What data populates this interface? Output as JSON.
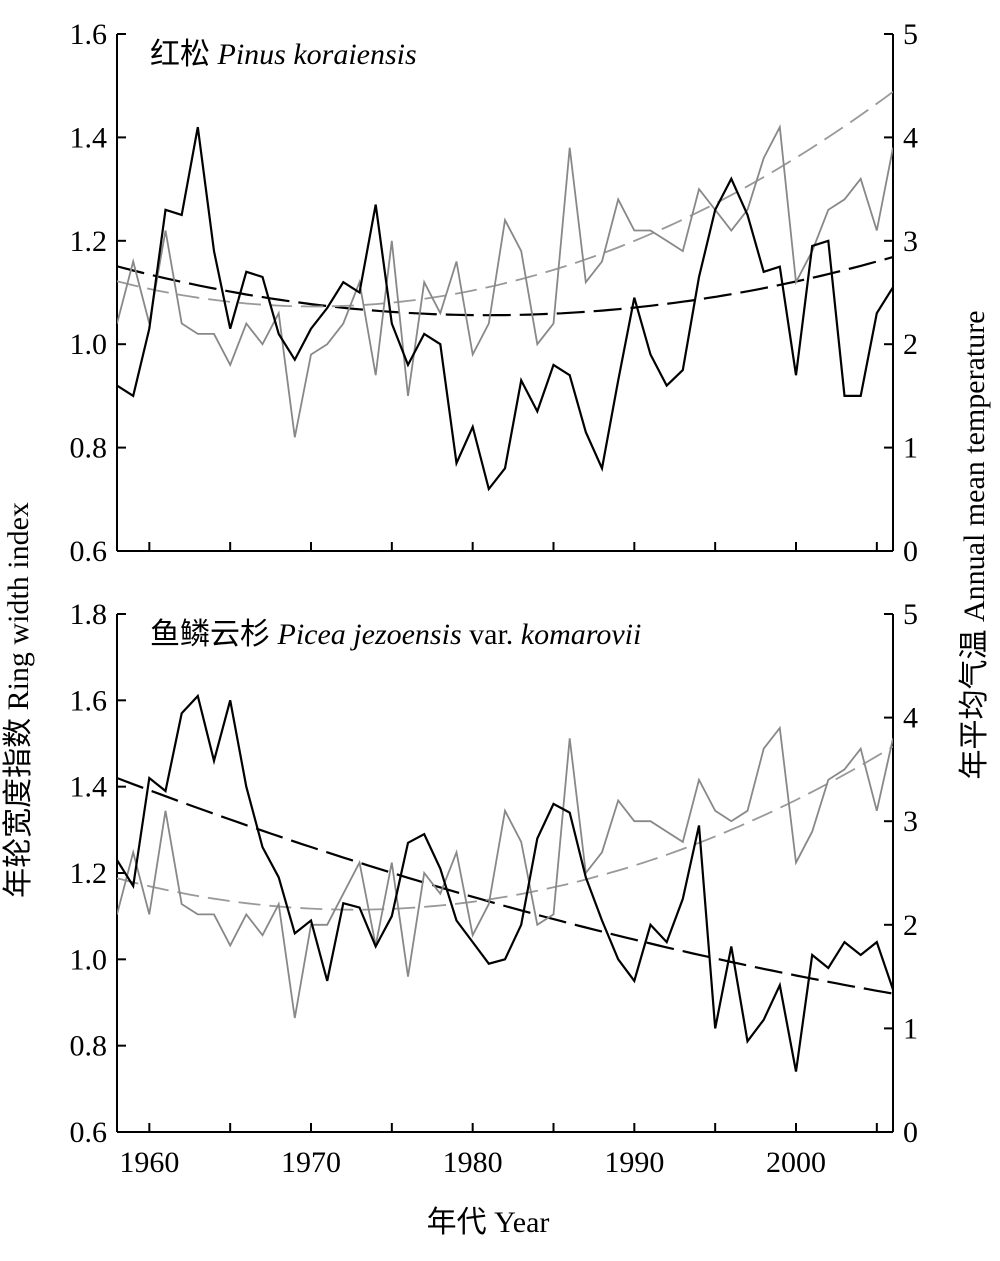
{
  "colors": {
    "ring_width": "#000000",
    "temperature": "#888888",
    "ring_width_trend": "#000000",
    "temperature_trend": "#999999"
  },
  "axes": {
    "left_label": "年轮宽度指数 Ring width index",
    "right_label": "年平均气温 Annual mean temperature",
    "x_label": "年代 Year",
    "x_ticks": [
      1960,
      1970,
      1980,
      1990,
      2000
    ]
  },
  "chart_data": [
    {
      "type": "line",
      "title_cn": "红松",
      "title_latin": "Pinus koraiensis",
      "title_suffix": "",
      "title_latin2": "",
      "xlim": [
        1958,
        2006
      ],
      "y_left_lim": [
        0.6,
        1.6
      ],
      "y_left_ticks": [
        "0.6",
        "0.8",
        "1.0",
        "1.2",
        "1.4",
        "1.6"
      ],
      "y_right_lim": [
        0,
        5
      ],
      "y_right_ticks": [
        "0",
        "1",
        "2",
        "3",
        "4",
        "5"
      ],
      "years_start": 1958,
      "series": [
        {
          "axis": "left",
          "values": [
            0.92,
            0.9,
            1.03,
            1.26,
            1.25,
            1.42,
            1.18,
            1.03,
            1.14,
            1.13,
            1.02,
            0.97,
            1.03,
            1.07,
            1.12,
            1.1,
            1.27,
            1.04,
            0.96,
            1.02,
            1.0,
            0.77,
            0.84,
            0.72,
            0.76,
            0.93,
            0.87,
            0.96,
            0.94,
            0.83,
            0.76,
            0.93,
            1.09,
            0.98,
            0.92,
            0.95,
            1.13,
            1.26,
            1.32,
            1.25,
            1.14,
            1.15,
            0.94,
            1.19,
            1.2,
            0.9,
            0.9,
            1.06,
            1.11
          ]
        },
        {
          "axis": "right",
          "values": [
            2.2,
            2.8,
            2.2,
            3.1,
            2.2,
            2.1,
            2.1,
            1.8,
            2.2,
            2.0,
            2.3,
            1.1,
            1.9,
            2.0,
            2.2,
            2.6,
            1.7,
            3.0,
            1.5,
            2.6,
            2.3,
            2.8,
            1.9,
            2.2,
            3.2,
            2.9,
            2.0,
            2.2,
            3.9,
            2.6,
            2.8,
            3.4,
            3.1,
            3.1,
            3.0,
            2.9,
            3.5,
            3.3,
            3.1,
            3.3,
            3.8,
            4.1,
            2.6,
            2.9,
            3.3,
            3.4,
            3.6,
            3.1,
            3.9
          ]
        }
      ],
      "trends": [
        {
          "axis": "left",
          "poly": [
            1.1506,
            -0.008233,
            0.0001794
          ],
          "start": 1958
        },
        {
          "axis": "right",
          "poly": [
            2.608,
            -0.03973,
            0.0016233
          ],
          "start": 1958
        }
      ]
    },
    {
      "type": "line",
      "title_cn": "鱼鳞云杉",
      "title_latin": "Picea jezoensis",
      "title_suffix": "var.",
      "title_latin2": "komarovii",
      "xlim": [
        1958,
        2006
      ],
      "y_left_lim": [
        0.6,
        1.8
      ],
      "y_left_ticks": [
        "0.6",
        "0.8",
        "1.0",
        "1.2",
        "1.4",
        "1.6",
        "1.8"
      ],
      "y_right_lim": [
        0,
        5
      ],
      "y_right_ticks": [
        "0",
        "1",
        "2",
        "3",
        "4",
        "5"
      ],
      "years_start": 1958,
      "series": [
        {
          "axis": "left",
          "values": [
            1.23,
            1.17,
            1.42,
            1.39,
            1.57,
            1.61,
            1.46,
            1.6,
            1.4,
            1.26,
            1.19,
            1.06,
            1.09,
            0.95,
            1.13,
            1.12,
            1.03,
            1.1,
            1.27,
            1.29,
            1.21,
            1.09,
            1.04,
            0.99,
            1.0,
            1.08,
            1.28,
            1.36,
            1.34,
            1.19,
            1.09,
            1.0,
            0.95,
            1.08,
            1.04,
            1.14,
            1.31,
            0.84,
            1.03,
            0.81,
            0.86,
            0.94,
            0.74,
            1.01,
            0.98,
            1.04,
            1.01,
            1.04,
            0.93
          ]
        },
        {
          "axis": "right",
          "values": [
            2.1,
            2.7,
            2.1,
            3.1,
            2.2,
            2.1,
            2.1,
            1.8,
            2.1,
            1.9,
            2.2,
            1.1,
            2.0,
            2.0,
            2.3,
            2.6,
            1.8,
            2.6,
            1.5,
            2.5,
            2.3,
            2.7,
            1.9,
            2.2,
            3.1,
            2.8,
            2.0,
            2.1,
            3.8,
            2.5,
            2.7,
            3.2,
            3.0,
            3.0,
            2.9,
            2.8,
            3.4,
            3.1,
            3.0,
            3.1,
            3.7,
            3.9,
            2.6,
            2.9,
            3.4,
            3.5,
            3.7,
            3.1,
            3.8
          ]
        }
      ],
      "trends": [
        {
          "axis": "left",
          "poly": [
            1.42,
            -0.014292,
            8.1e-05
          ],
          "start": 1958
        },
        {
          "axis": "right",
          "poly": [
            2.45,
            -0.0415,
            0.001416
          ],
          "start": 1958
        }
      ]
    }
  ]
}
